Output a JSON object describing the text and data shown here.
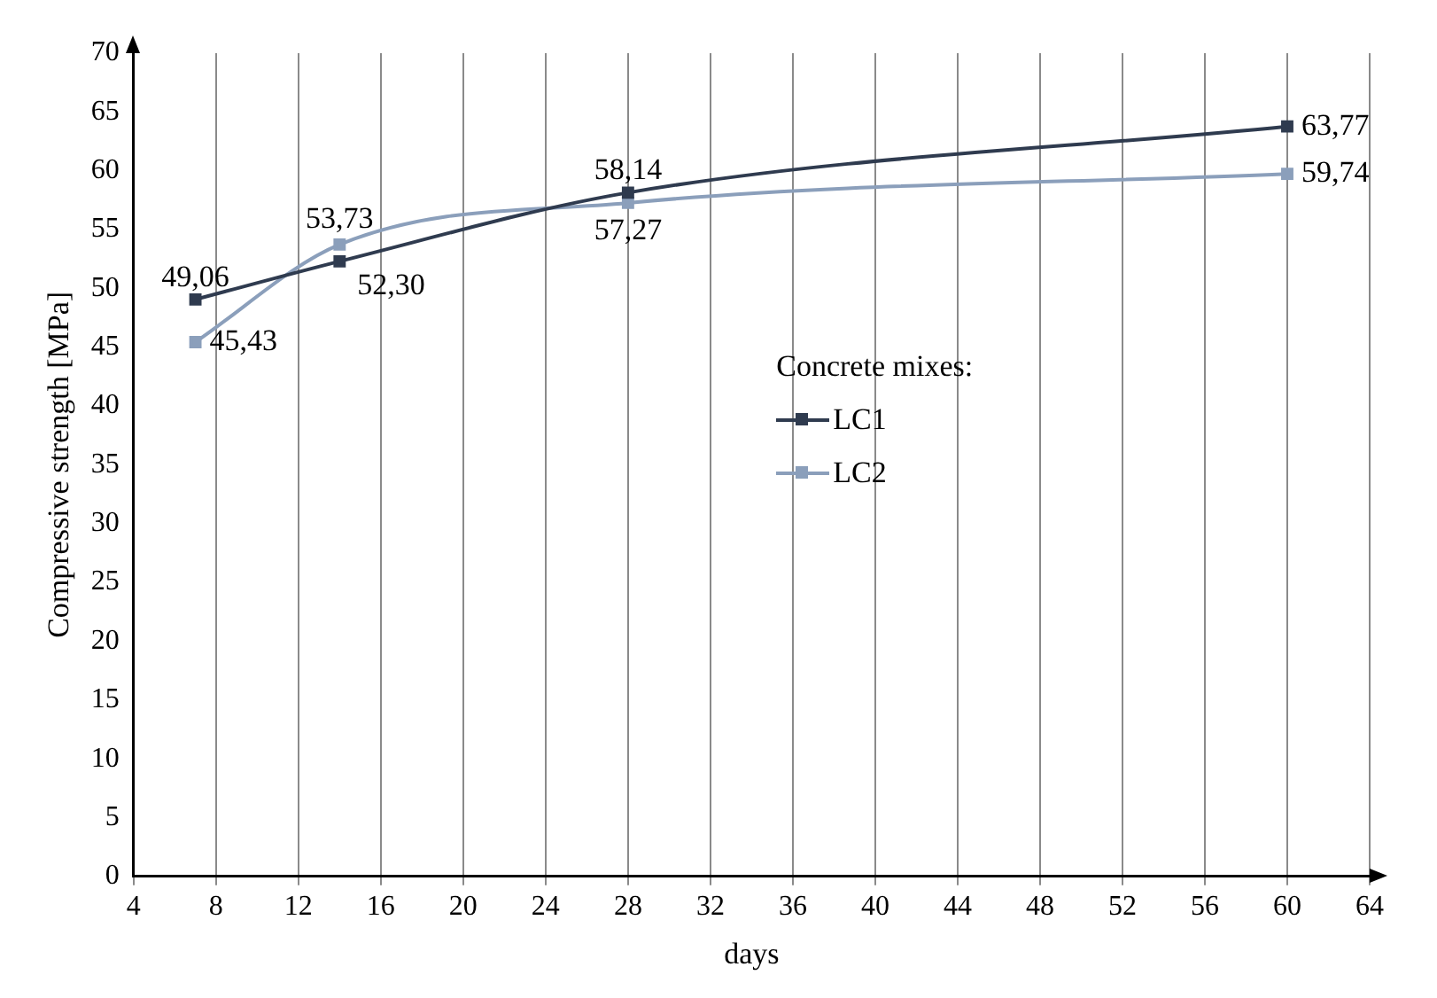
{
  "chart_data": {
    "type": "line",
    "xlabel": "days",
    "ylabel": "Compressive strength [MPa]",
    "legend_title": "Concrete mixes:",
    "legend": "right",
    "grid": "x",
    "marker": "square",
    "line_style": "solid",
    "xlim": [
      4,
      64
    ],
    "xticks": [
      4,
      8,
      12,
      16,
      20,
      24,
      28,
      32,
      36,
      40,
      44,
      48,
      52,
      56,
      60,
      64
    ],
    "ylim": [
      0,
      70
    ],
    "yticks": [
      0,
      5,
      10,
      15,
      20,
      25,
      30,
      35,
      40,
      45,
      50,
      55,
      60,
      65,
      70
    ],
    "series": [
      {
        "name": "LC1",
        "color": "#2f3b4f",
        "x": [
          7,
          14,
          28,
          60
        ],
        "values": [
          49.06,
          52.3,
          58.14,
          63.77
        ],
        "value_labels": [
          "49,06",
          "52,30",
          "58,14",
          "63,77"
        ]
      },
      {
        "name": "LC2",
        "color": "#8b9fbb",
        "x": [
          7,
          14,
          28,
          60
        ],
        "values": [
          45.43,
          53.73,
          57.27,
          59.74
        ],
        "value_labels": [
          "45,43",
          "53,73",
          "57,27",
          "59,74"
        ]
      }
    ]
  }
}
